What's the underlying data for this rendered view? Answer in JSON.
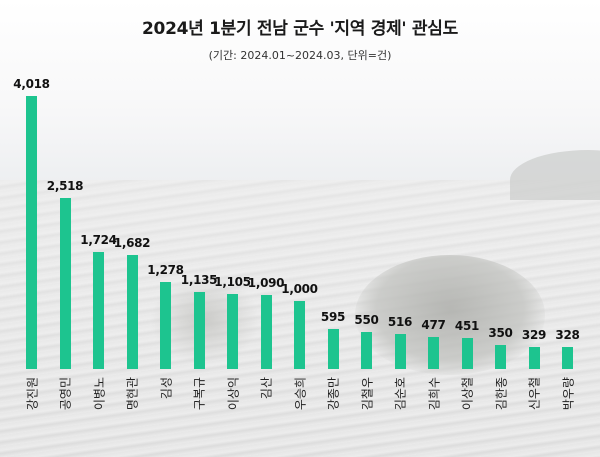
{
  "chart_data": {
    "type": "bar",
    "title": "2024년 1분기 전남 군수 '지역 경제' 관심도",
    "subtitle": "(기간: 2024.01~2024.03, 단위=건)",
    "xlabel": "",
    "ylabel": "",
    "bar_color": "#1DC48F",
    "grid": false,
    "legend": null,
    "ylim": [
      0,
      4018
    ],
    "categories": [
      "강진원",
      "공영민",
      "이병노",
      "명현관",
      "김성",
      "구복규",
      "이상익",
      "김산",
      "우승희",
      "강종만",
      "김철우",
      "김순호",
      "김희수",
      "이상철",
      "김한종",
      "신우철",
      "박우량"
    ],
    "values": [
      4018,
      2518,
      1724,
      1682,
      1278,
      1135,
      1105,
      1090,
      1000,
      595,
      550,
      516,
      477,
      451,
      350,
      329,
      328
    ],
    "value_labels": [
      "4,018",
      "2,518",
      "1,724",
      "1,682",
      "1,278",
      "1,135",
      "1,105",
      "1,090",
      "1,000",
      "595",
      "550",
      "516",
      "477",
      "451",
      "350",
      "329",
      "328"
    ]
  }
}
